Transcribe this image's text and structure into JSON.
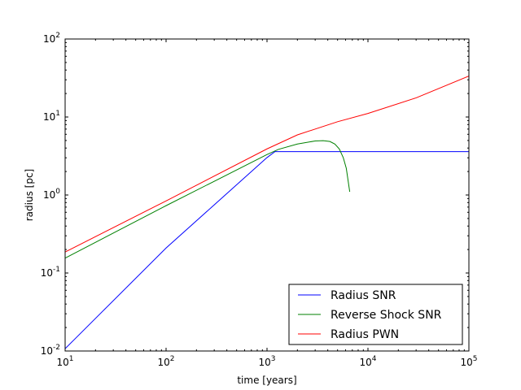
{
  "chart_data": {
    "type": "line",
    "xscale": "log",
    "yscale": "log",
    "xlim": [
      10,
      100000
    ],
    "ylim": [
      0.01,
      100
    ],
    "xlabel": "time [years]",
    "ylabel": "radius [pc]",
    "x_ticks": [
      {
        "value": 10,
        "base": "10",
        "exp": "1"
      },
      {
        "value": 100,
        "base": "10",
        "exp": "2"
      },
      {
        "value": 1000,
        "base": "10",
        "exp": "3"
      },
      {
        "value": 10000,
        "base": "10",
        "exp": "4"
      },
      {
        "value": 100000,
        "base": "10",
        "exp": "5"
      }
    ],
    "y_ticks": [
      {
        "value": 0.01,
        "base": "10",
        "exp": "-2"
      },
      {
        "value": 0.1,
        "base": "10",
        "exp": "-1"
      },
      {
        "value": 1,
        "base": "10",
        "exp": "0"
      },
      {
        "value": 10,
        "base": "10",
        "exp": "1"
      },
      {
        "value": 100,
        "base": "10",
        "exp": "2"
      }
    ],
    "legend_position": "lower-right",
    "series": [
      {
        "name": "Radius SNR",
        "color": "#0000ff",
        "x": [
          10,
          100,
          1000,
          1200,
          2000,
          5000,
          10000,
          100000
        ],
        "y": [
          0.0107,
          0.209,
          3.02,
          3.6,
          3.6,
          3.6,
          3.6,
          3.6
        ]
      },
      {
        "name": "Reverse Shock SNR",
        "color": "#008000",
        "x": [
          10,
          100,
          1000,
          1300,
          2000,
          3000,
          3600,
          4200,
          4700,
          5200,
          5700,
          6100,
          6600
        ],
        "y": [
          0.155,
          0.73,
          3.3,
          3.85,
          4.5,
          4.93,
          4.97,
          4.85,
          4.5,
          3.9,
          3.0,
          2.2,
          1.1
        ]
      },
      {
        "name": "Radius PWN",
        "color": "#ff0000",
        "x": [
          10,
          100,
          1000,
          2000,
          5000,
          10000,
          30000,
          100000
        ],
        "y": [
          0.186,
          0.84,
          3.9,
          5.9,
          8.7,
          11.1,
          17.6,
          33.5
        ]
      }
    ]
  }
}
